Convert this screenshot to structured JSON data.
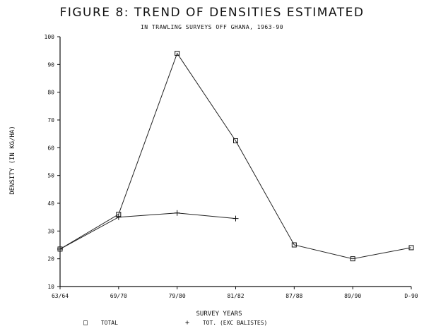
{
  "chart_data": {
    "type": "line",
    "title": "FIGURE 8: TREND OF DENSITIES ESTIMATED",
    "subtitle": "IN TRAWLING SURVEYS OFF GHANA, 1963-90",
    "xlabel": "SURVEY YEARS",
    "ylabel": "DENSITY (IN KG/HA)",
    "categories": [
      "63/64",
      "69/70",
      "79/80",
      "81/82",
      "87/88",
      "89/90",
      "D-90"
    ],
    "ylim": [
      10,
      100
    ],
    "yticks": [
      10,
      20,
      30,
      40,
      50,
      60,
      70,
      80,
      90,
      100
    ],
    "grid": false,
    "legend_position": "bottom",
    "series": [
      {
        "name": "TOTAL",
        "marker": "square",
        "values": [
          23.5,
          36,
          94,
          62.5,
          25,
          20,
          24
        ]
      },
      {
        "name": "TOT. (EXC BALISTES)",
        "marker": "plus",
        "values": [
          23.5,
          35,
          36.5,
          34.5,
          null,
          null,
          null
        ]
      }
    ]
  }
}
